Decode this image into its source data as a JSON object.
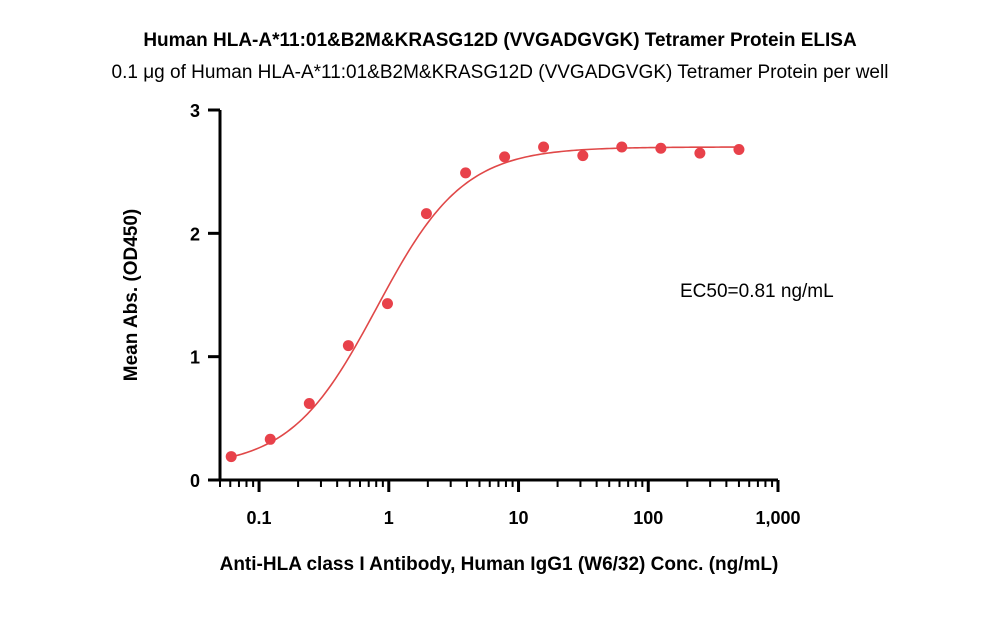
{
  "chart_data": {
    "type": "scatter",
    "title": "Human HLA-A*11:01&B2M&KRASG12D (VVGADGVGK) Tetramer Protein ELISA",
    "subtitle": "0.1 μg of Human HLA-A*11:01&B2M&KRASG12D (VVGADGVGK) Tetramer Protein per well",
    "xlabel": "Anti-HLA class I Antibody, Human IgG1 (W6/32) Conc. (ng/mL)",
    "ylabel": "Mean Abs. (OD450)",
    "xscale": "log",
    "xlim": [
      0.05,
      1000
    ],
    "ylim": [
      0,
      3
    ],
    "xticks": [
      0.1,
      1,
      10,
      100,
      1000
    ],
    "xtick_labels": [
      "0.1",
      "1",
      "10",
      "100",
      "1,000"
    ],
    "yticks": [
      0,
      1,
      2,
      3
    ],
    "ytick_labels": [
      "0",
      "1",
      "2",
      "3"
    ],
    "grid": false,
    "annotation": "EC50=0.81 ng/mL",
    "point_color": "#e8414a",
    "curve_color": "#e04848",
    "series": [
      {
        "x": [
          0.061,
          0.122,
          0.244,
          0.488,
          0.977,
          1.95,
          3.91,
          7.81,
          15.6,
          31.3,
          62.5,
          125,
          250,
          500
        ],
        "y": [
          0.19,
          0.33,
          0.62,
          1.09,
          1.43,
          2.16,
          2.49,
          2.62,
          2.7,
          2.63,
          2.7,
          2.69,
          2.65,
          2.68
        ]
      }
    ],
    "fit": {
      "model": "4PL",
      "bottom": 0.1,
      "top": 2.7,
      "ec50": 0.81,
      "hill": 1.3
    }
  }
}
